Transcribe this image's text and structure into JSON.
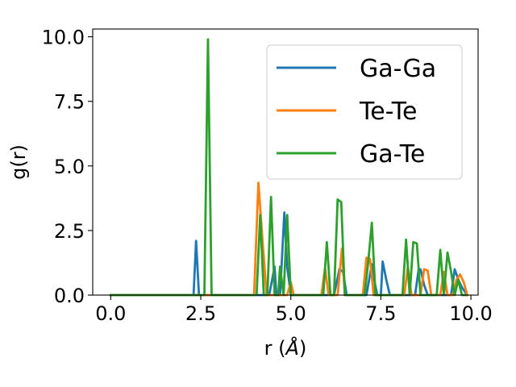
{
  "chart_data": {
    "type": "line",
    "title": "",
    "xlabel": "r (Å)",
    "xlabel_prefix": "r (",
    "xlabel_unit": "Å",
    "xlabel_suffix": ")",
    "ylabel": "g(r)",
    "xlim": [
      -0.5,
      10.2
    ],
    "ylim": [
      0,
      10.3
    ],
    "xticks": [
      0.0,
      2.5,
      5.0,
      7.5,
      10.0
    ],
    "xtick_labels": [
      "0.0",
      "2.5",
      "5.0",
      "7.5",
      "10.0"
    ],
    "yticks": [
      0.0,
      2.5,
      5.0,
      7.5,
      10.0
    ],
    "ytick_labels": [
      "0.0",
      "2.5",
      "5.0",
      "7.5",
      "10.0"
    ],
    "grid": false,
    "legend_position": "top-right",
    "series": [
      {
        "name": "Ga-Ga",
        "color": "#1f77b4",
        "x": [
          0.0,
          2.3,
          2.37,
          2.45,
          2.5,
          4.4,
          4.55,
          4.6,
          4.7,
          4.75,
          4.82,
          4.9,
          5.0,
          6.2,
          6.35,
          6.45,
          6.55,
          7.1,
          7.25,
          7.3,
          7.4,
          7.5,
          7.55,
          7.65,
          7.75,
          8.45,
          8.55,
          8.6,
          8.7,
          8.8,
          9.45,
          9.55,
          9.65,
          9.75,
          9.9
        ],
        "y": [
          0.0,
          0.0,
          2.1,
          0.0,
          0.0,
          0.0,
          1.1,
          0.0,
          0.0,
          1.3,
          3.2,
          1.1,
          0.0,
          0.0,
          1.0,
          0.9,
          0.0,
          0.0,
          1.2,
          0.7,
          0.0,
          0.0,
          1.3,
          0.6,
          0.0,
          0.0,
          1.0,
          1.0,
          0.4,
          0.0,
          0.0,
          1.0,
          0.6,
          0.3,
          0.0
        ]
      },
      {
        "name": "Te-Te",
        "color": "#ff7f0e",
        "x": [
          0.0,
          3.98,
          4.1,
          4.22,
          4.33,
          4.9,
          5.0,
          5.08,
          5.85,
          5.95,
          6.05,
          6.3,
          6.42,
          6.5,
          7.0,
          7.1,
          7.2,
          7.3,
          8.15,
          8.25,
          8.35,
          8.6,
          8.7,
          8.8,
          8.9,
          9.15,
          9.25,
          9.35,
          9.5,
          9.6,
          9.7,
          9.8,
          9.9
        ],
        "y": [
          0.0,
          0.0,
          4.35,
          2.0,
          0.0,
          0.0,
          0.5,
          0.0,
          0.0,
          1.05,
          0.0,
          0.0,
          1.8,
          0.0,
          0.0,
          1.45,
          1.4,
          0.0,
          0.0,
          1.1,
          0.0,
          0.0,
          1.0,
          0.95,
          0.0,
          0.0,
          0.9,
          0.0,
          0.0,
          0.6,
          0.8,
          0.5,
          0.0
        ]
      },
      {
        "name": "Ga-Te",
        "color": "#2ca02c",
        "x": [
          0.0,
          2.6,
          2.7,
          2.8,
          4.05,
          4.15,
          4.25,
          4.35,
          4.45,
          4.55,
          4.65,
          4.7,
          4.8,
          4.9,
          5.0,
          5.9,
          6.0,
          6.1,
          6.2,
          6.3,
          6.4,
          6.5,
          6.6,
          7.05,
          7.15,
          7.25,
          7.35,
          7.45,
          8.1,
          8.2,
          8.3,
          8.4,
          8.5,
          8.6,
          8.7,
          9.05,
          9.15,
          9.25,
          9.35,
          9.45,
          9.55,
          9.65,
          9.75,
          9.85
        ],
        "y": [
          0.0,
          0.0,
          9.9,
          0.0,
          0.0,
          3.1,
          0.0,
          0.0,
          3.8,
          0.0,
          0.0,
          1.1,
          0.0,
          3.1,
          0.0,
          0.0,
          2.05,
          0.0,
          0.0,
          3.7,
          3.6,
          0.0,
          0.0,
          0.0,
          1.3,
          2.8,
          0.0,
          0.0,
          0.0,
          2.15,
          0.0,
          2.05,
          2.0,
          0.0,
          0.0,
          0.0,
          1.75,
          0.0,
          1.65,
          0.9,
          0.0,
          0.6,
          0.0,
          0.0
        ]
      }
    ]
  }
}
